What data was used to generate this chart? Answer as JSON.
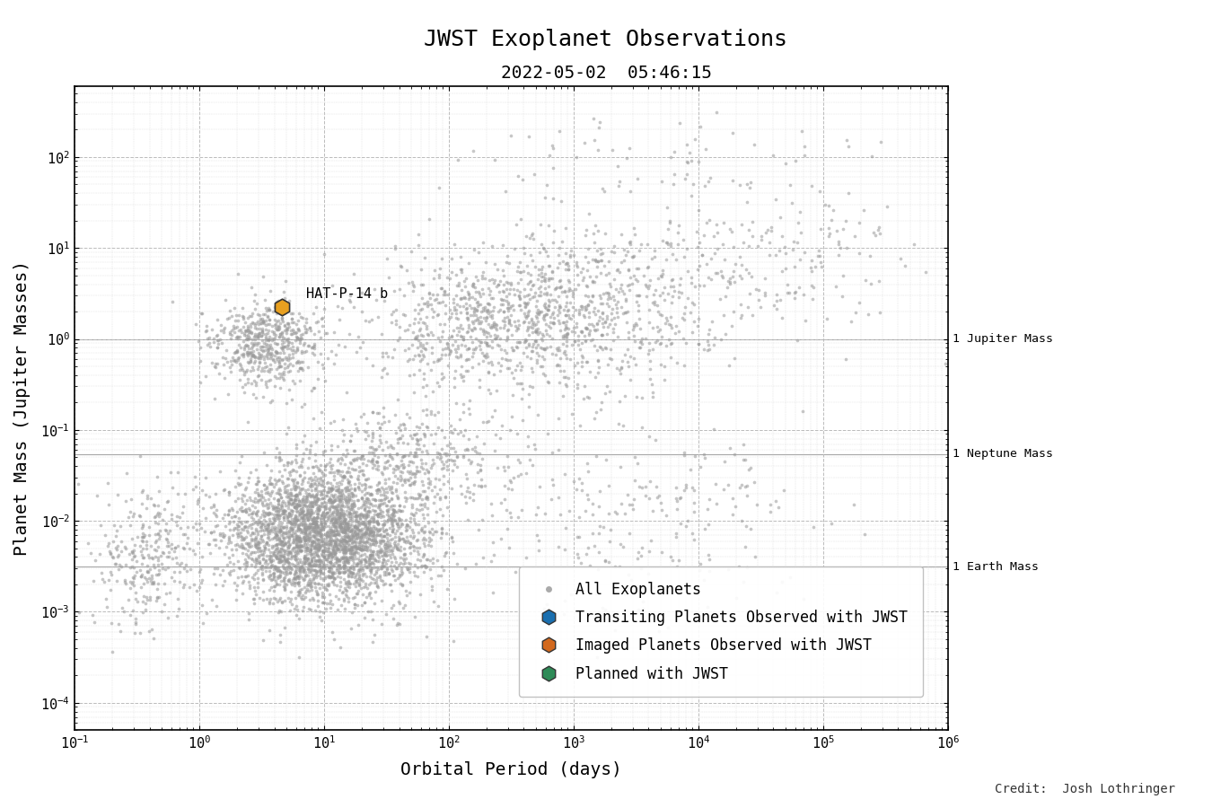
{
  "title": "JWST Exoplanet Observations",
  "subtitle": "2022-05-02  05:46:15",
  "xlabel": "Orbital Period (days)",
  "ylabel": "Planet Mass (Jupiter Masses)",
  "xlim": [
    0.1,
    1000000.0
  ],
  "ylim": [
    5e-05,
    600
  ],
  "credit": "Credit:  Josh Lothringer",
  "highlighted_planet": {
    "name": "HAT-P-14 b",
    "period": 4.63,
    "mass": 2.23,
    "color": "#E8A020",
    "edge_color": "#333333"
  },
  "reference_lines": {
    "jupiter_mass": 1.0,
    "neptune_mass": 0.054,
    "earth_mass": 0.00315
  },
  "legend_labels": [
    "All Exoplanets",
    "Transiting Planets Observed with JWST",
    "Imaged Planets Observed with JWST",
    "Planned with JWST"
  ],
  "legend_marker_colors": [
    "#aaaaaa",
    "#1a6faf",
    "#d2691e",
    "#2e8b57"
  ],
  "scatter_color": "#999999",
  "background_color": "#ffffff",
  "grid_major_color": "#bbbbbb",
  "grid_minor_color": "#dddddd",
  "title_fontsize": 18,
  "subtitle_fontsize": 14,
  "axis_label_fontsize": 14,
  "tick_label_fontsize": 11,
  "legend_fontsize": 12,
  "credit_fontsize": 10
}
